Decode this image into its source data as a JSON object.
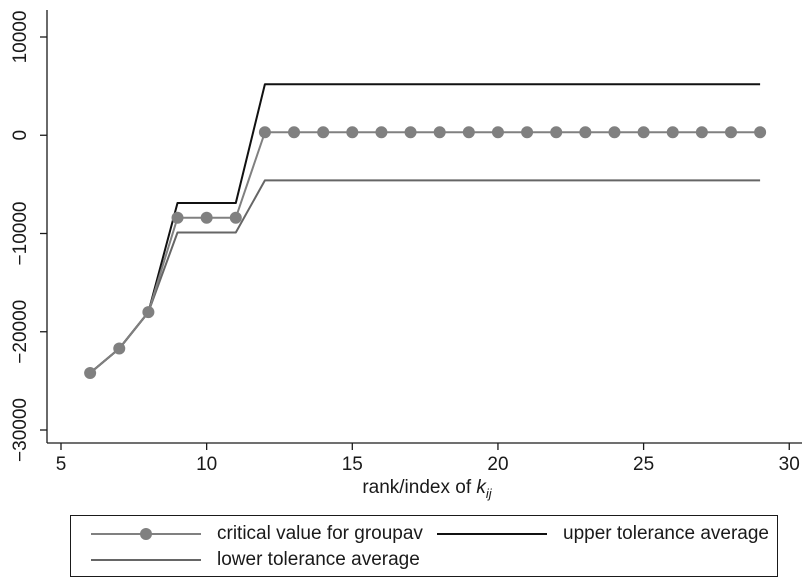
{
  "chart_data": {
    "type": "line",
    "title": "",
    "xlabel_text": "rank/index of ",
    "xlabel_var": "k",
    "xlabel_sub": "ij",
    "ylabel": "",
    "xlim": [
      4.8,
      30.3
    ],
    "ylim": [
      -30000,
      10000
    ],
    "x_ticks": [
      5,
      10,
      15,
      20,
      25,
      30
    ],
    "y_ticks": [
      10000,
      0,
      -10000,
      -20000,
      -30000
    ],
    "y_tick_labels": [
      "10000",
      "0",
      "−10000",
      "−20000",
      "−30000"
    ],
    "grid": false,
    "legend_position": "bottom",
    "series": [
      {
        "name": "critical value for groupav",
        "color": "#808080",
        "markers": true,
        "x": [
          6,
          7,
          8,
          9,
          10,
          11,
          12,
          13,
          14,
          15,
          16,
          17,
          18,
          19,
          20,
          21,
          22,
          23,
          24,
          25,
          26,
          27,
          28,
          29
        ],
        "y": [
          -24200,
          -21700,
          -18000,
          -8400,
          -8400,
          -8400,
          300,
          300,
          300,
          300,
          300,
          300,
          300,
          300,
          300,
          300,
          300,
          300,
          300,
          300,
          300,
          300,
          300,
          300
        ]
      },
      {
        "name": "upper tolerance average",
        "color": "#111111",
        "markers": false,
        "x": [
          6,
          7,
          8,
          9,
          10,
          11,
          12,
          13,
          14,
          15,
          16,
          17,
          18,
          19,
          20,
          21,
          22,
          23,
          24,
          25,
          26,
          27,
          28,
          29
        ],
        "y": [
          -24200,
          -21700,
          -18000,
          -6900,
          -6900,
          -6900,
          5200,
          5200,
          5200,
          5200,
          5200,
          5200,
          5200,
          5200,
          5200,
          5200,
          5200,
          5200,
          5200,
          5200,
          5200,
          5200,
          5200,
          5200
        ]
      },
      {
        "name": "lower tolerance average",
        "color": "#666666",
        "markers": false,
        "x": [
          6,
          7,
          8,
          9,
          10,
          11,
          12,
          13,
          14,
          15,
          16,
          17,
          18,
          19,
          20,
          21,
          22,
          23,
          24,
          25,
          26,
          27,
          28,
          29
        ],
        "y": [
          -24200,
          -21700,
          -18000,
          -9900,
          -9900,
          -9900,
          -4600,
          -4600,
          -4600,
          -4600,
          -4600,
          -4600,
          -4600,
          -4600,
          -4600,
          -4600,
          -4600,
          -4600,
          -4600,
          -4600,
          -4600,
          -4600,
          -4600,
          -4600
        ]
      }
    ]
  }
}
